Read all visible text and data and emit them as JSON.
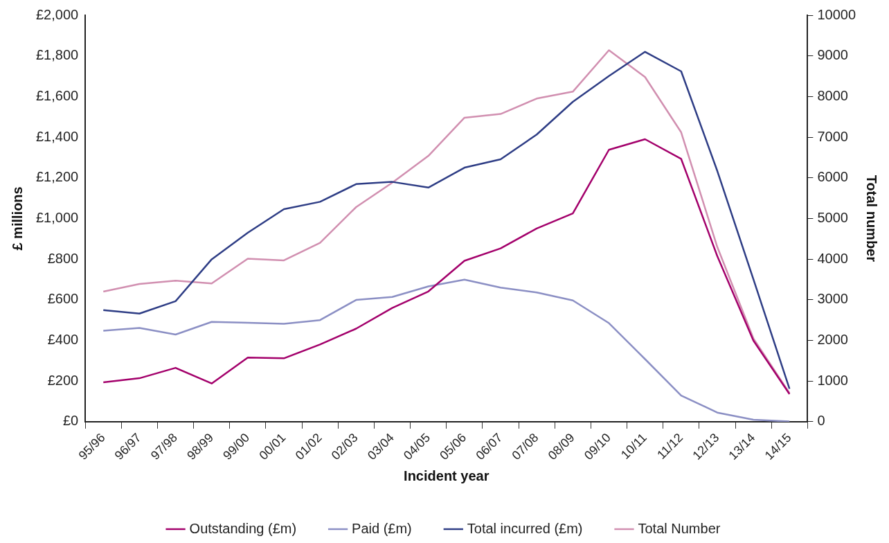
{
  "chart_data": {
    "type": "line",
    "xlabel": "Incident year",
    "ylabel": "£ millions",
    "y2label": "Total number",
    "categories": [
      "95/96",
      "96/97",
      "97/98",
      "98/99",
      "99/00",
      "00/01",
      "01/02",
      "02/03",
      "03/04",
      "04/05",
      "05/06",
      "06/07",
      "07/08",
      "08/09",
      "09/10",
      "10/11",
      "11/12",
      "12/13",
      "13/14",
      "14/15"
    ],
    "series": [
      {
        "name": "Outstanding (£m)",
        "color": "#a3006b",
        "values": [
          194,
          214,
          265,
          188,
          316,
          312,
          380,
          458,
          560,
          641,
          792,
          853,
          951,
          1025,
          1338,
          1390,
          1293,
          815,
          399,
          136
        ]
      },
      {
        "name": "Paid (£m)",
        "color": "#8b8fc4",
        "values": [
          448,
          461,
          429,
          491,
          487,
          482,
          500,
          599,
          614,
          666,
          699,
          660,
          636,
          597,
          485,
          308,
          129,
          45,
          10,
          1
        ]
      },
      {
        "name": "Total incurred (£m)",
        "color": "#2e3d85",
        "values": [
          549,
          532,
          593,
          799,
          930,
          1046,
          1082,
          1169,
          1180,
          1152,
          1250,
          1291,
          1413,
          1574,
          1701,
          1820,
          1724,
          1234,
          701,
          162
        ]
      },
      {
        "name": "Total Number",
        "color": "#d18fb0",
        "axis": "y2",
        "values": [
          3200,
          3390,
          3470,
          3400,
          4010,
          3970,
          4400,
          5280,
          5880,
          6540,
          7480,
          7570,
          7950,
          8120,
          9140,
          8480,
          7120,
          4300,
          2050,
          700
        ]
      }
    ],
    "ylim": [
      0,
      2000
    ],
    "yticks": [
      {
        "value": 0,
        "label": "£0"
      },
      {
        "value": 200,
        "label": "£200"
      },
      {
        "value": 400,
        "label": "£400"
      },
      {
        "value": 600,
        "label": "£600"
      },
      {
        "value": 800,
        "label": "£800"
      },
      {
        "value": 1000,
        "label": "£1,000"
      },
      {
        "value": 1200,
        "label": "£1,200"
      },
      {
        "value": 1400,
        "label": "£1,400"
      },
      {
        "value": 1600,
        "label": "£1,600"
      },
      {
        "value": 1800,
        "label": "£1,800"
      },
      {
        "value": 2000,
        "label": "£2,000"
      }
    ],
    "y2lim": [
      0,
      10000
    ],
    "y2ticks": [
      0,
      1000,
      2000,
      3000,
      4000,
      5000,
      6000,
      7000,
      8000,
      9000,
      10000
    ],
    "grid": false,
    "legend": "bottom",
    "marker": "none",
    "line_style": "solid"
  }
}
